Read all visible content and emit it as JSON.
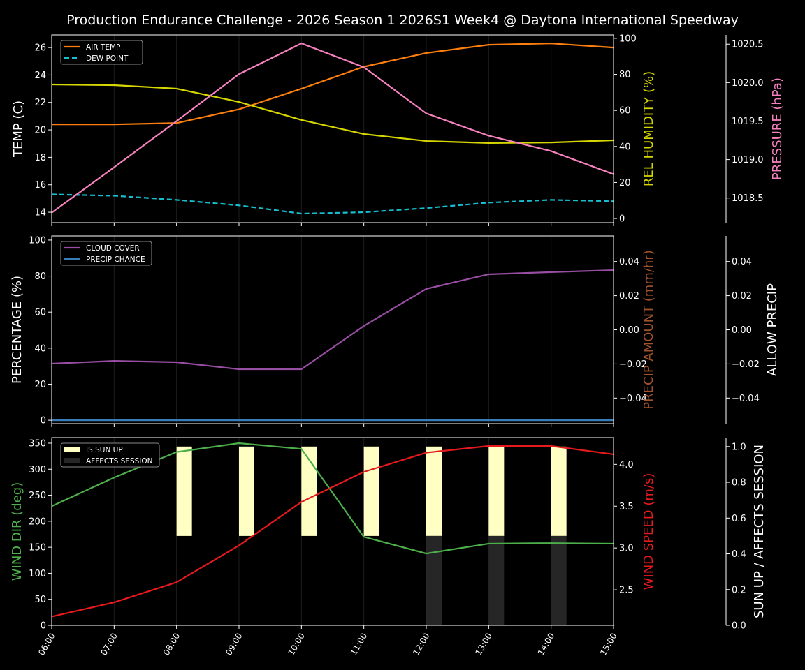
{
  "title": "Production Endurance Challenge - 2026 Season 1 2026S1 Week4 @ Daytona International Speedway",
  "colors": {
    "background": "#000000",
    "air_temp": "#ff7f0e",
    "dew_point": "#17becf",
    "humidity": "#d6d600",
    "pressure": "#f781bf",
    "cloud_cover": "#984ea3",
    "precip_chance": "#377eb8",
    "precip_amount_label": "#a0522d",
    "wind_dir": "#4daf4a",
    "wind_speed": "#e41a1c",
    "sun_up": "#ffffc4",
    "affects_session": "#262626"
  },
  "chart_data": [
    {
      "type": "line",
      "x": [
        "06:00",
        "07:00",
        "08:00",
        "09:00",
        "10:00",
        "11:00",
        "12:00",
        "13:00",
        "14:00",
        "15:00"
      ],
      "legend": {
        "placement": "top-left",
        "entries": [
          "AIR TEMP",
          "DEW POINT"
        ]
      },
      "grid": "vertical",
      "axes": {
        "left": {
          "label": "TEMP (C)",
          "ylim": [
            13.24,
            26.92
          ],
          "ticks": [
            "14",
            "16",
            "18",
            "20",
            "22",
            "24",
            "26"
          ]
        },
        "right": {
          "label": "REL HUMIDITY (%)",
          "ylim": [
            -2.3,
            101.9
          ],
          "ticks": [
            "0",
            "20",
            "40",
            "60",
            "80",
            "100"
          ]
        },
        "right2": {
          "label": "PRESSURE (hPa)",
          "ylim": [
            1018.18,
            1020.62
          ],
          "ticks": [
            "1018.5",
            "1019.0",
            "1019.5",
            "1020.0",
            "1020.5"
          ]
        }
      },
      "series": [
        {
          "name": "AIR TEMP",
          "axis": "left",
          "style": "solid",
          "values": [
            20.4,
            20.4,
            20.5,
            21.5,
            23.0,
            24.6,
            25.6,
            26.2,
            26.3,
            26.0
          ]
        },
        {
          "name": "DEW POINT",
          "axis": "left",
          "style": "dashed",
          "values": [
            15.3,
            15.2,
            14.9,
            14.5,
            13.9,
            14.0,
            14.3,
            14.7,
            14.9,
            14.8
          ]
        },
        {
          "axis": "right",
          "style": "solid",
          "values": [
            74.4,
            74.0,
            72.1,
            64.7,
            54.7,
            46.9,
            43.0,
            41.9,
            42.2,
            43.4
          ]
        },
        {
          "axis": "right2",
          "style": "solid",
          "values": [
            1018.31,
            1018.9,
            1019.5,
            1020.11,
            1020.51,
            1020.2,
            1019.6,
            1019.31,
            1019.11,
            1018.81
          ]
        }
      ]
    },
    {
      "type": "line",
      "x": [
        "06:00",
        "07:00",
        "08:00",
        "09:00",
        "10:00",
        "11:00",
        "12:00",
        "13:00",
        "14:00",
        "15:00"
      ],
      "legend": {
        "placement": "top-left",
        "entries": [
          "CLOUD COVER",
          "PRECIP CHANCE"
        ]
      },
      "grid": "vertical",
      "axes": {
        "left": {
          "label": "PERCENTAGE (%)",
          "ylim": [
            -1.9,
            102.3
          ],
          "ticks": [
            "0",
            "20",
            "40",
            "60",
            "80",
            "100"
          ]
        },
        "right": {
          "label": "PRECIP AMOUNT (mm/hr)",
          "ylim": [
            -0.055,
            0.055
          ],
          "ticks": [
            "−0.04",
            "−0.02",
            "0.00",
            "0.02",
            "0.04"
          ]
        },
        "right2": {
          "label": "ALLOW PRECIP",
          "ylim": [
            -0.055,
            0.055
          ],
          "ticks": [
            "−0.04",
            "−0.02",
            "0.00",
            "0.02",
            "0.04"
          ]
        }
      },
      "series": [
        {
          "name": "CLOUD COVER",
          "axis": "left",
          "style": "solid",
          "values": [
            31.4,
            32.9,
            32.2,
            28.3,
            28.3,
            52.3,
            72.9,
            81.0,
            82.2,
            83.3
          ]
        },
        {
          "name": "PRECIP CHANCE",
          "axis": "left",
          "style": "solid",
          "values": [
            0,
            0,
            0,
            0,
            0,
            0,
            0,
            0,
            0,
            0
          ]
        }
      ]
    },
    {
      "type": "line",
      "x": [
        "06:00",
        "07:00",
        "08:00",
        "09:00",
        "10:00",
        "11:00",
        "12:00",
        "13:00",
        "14:00",
        "15:00"
      ],
      "legend": {
        "placement": "top-left",
        "entries": [
          "IS SUN UP",
          "AFFECTS SESSION"
        ]
      },
      "grid": "vertical",
      "axes": {
        "left": {
          "label": "WIND DIR (deg)",
          "ylim": [
            0,
            360.7
          ],
          "ticks": [
            "0",
            "50",
            "100",
            "150",
            "200",
            "250",
            "300",
            "350"
          ]
        },
        "right": {
          "label": "WIND SPEED (m/s)",
          "ylim": [
            2.075,
            4.32
          ],
          "ticks": [
            "2.5",
            "3.0",
            "3.5",
            "4.0"
          ]
        },
        "right2": {
          "label": "SUN UP / AFFECTS SESSION",
          "ylim": [
            0,
            1.05
          ],
          "ticks": [
            "0.0",
            "0.2",
            "0.4",
            "0.6",
            "0.8",
            "1.0"
          ]
        }
      },
      "series": [
        {
          "axis": "left",
          "style": "solid",
          "values": [
            229,
            284,
            333,
            350,
            339,
            170,
            138,
            157,
            158,
            157
          ]
        },
        {
          "axis": "right",
          "style": "solid",
          "values": [
            2.18,
            2.35,
            2.59,
            3.03,
            3.55,
            3.91,
            4.14,
            4.22,
            4.22,
            4.12
          ]
        }
      ],
      "bars": {
        "IS SUN UP": [
          0,
          0,
          1,
          1,
          1,
          1,
          1,
          1,
          1,
          0
        ],
        "AFFECTS SESSION": [
          0,
          0,
          0,
          0,
          0,
          0,
          1,
          1,
          1,
          0
        ]
      }
    }
  ]
}
